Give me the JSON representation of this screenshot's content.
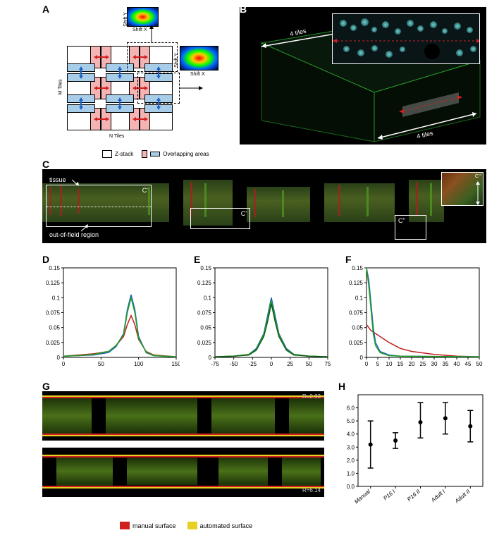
{
  "labels": {
    "A": "A",
    "B": "B",
    "C": "C",
    "D": "D",
    "E": "E",
    "F": "F",
    "G": "G",
    "H": "H"
  },
  "panelA": {
    "m_tiles": "M Tiles",
    "n_tiles": "N Tiles",
    "shift_x": "Shift X",
    "shift_y": "Shift Y",
    "legend_zstack": "Z-stack",
    "legend_overlap": "Overlapping areas",
    "tile_border": "#000000",
    "overlap_h_color": "#f4b4b4",
    "overlap_v_color": "#a8cde8",
    "arrow_h_color": "#d02020",
    "arrow_v_color": "#2060c0"
  },
  "panelB": {
    "label_4tiles_top": "4 tiles",
    "label_4tiles_bottom": "4 tiles",
    "cell_color": "#6fd4d4",
    "box_color": "#2fae2f",
    "dash_color": "#d02020"
  },
  "panelC": {
    "label_tissue": "tissue",
    "label_outfield": "out-of-field region",
    "label_outfield_side": "out of\nfield",
    "label_tissue_side": "tissue",
    "c1": "C'",
    "c2": "C'",
    "c3": "C''",
    "c3_inset": "C'''"
  },
  "chartD": {
    "type": "line",
    "xlim": [
      0,
      150
    ],
    "ylim": [
      0,
      0.15
    ],
    "xticks": [
      0,
      50,
      100,
      150
    ],
    "yticks": [
      0,
      0.025,
      0.05,
      0.075,
      0.1,
      0.125,
      0.15
    ],
    "series": [
      {
        "color": "#c02020",
        "x": [
          0,
          20,
          40,
          60,
          70,
          80,
          85,
          90,
          95,
          100,
          110,
          120,
          150
        ],
        "y": [
          0.002,
          0.004,
          0.006,
          0.01,
          0.02,
          0.035,
          0.055,
          0.07,
          0.055,
          0.03,
          0.01,
          0.004,
          0.001
        ]
      },
      {
        "color": "#2060c0",
        "x": [
          0,
          20,
          40,
          60,
          70,
          80,
          85,
          90,
          95,
          100,
          110,
          120,
          150
        ],
        "y": [
          0.002,
          0.003,
          0.004,
          0.008,
          0.018,
          0.04,
          0.08,
          0.105,
          0.08,
          0.035,
          0.008,
          0.003,
          0.001
        ]
      },
      {
        "color": "#20a020",
        "x": [
          0,
          20,
          40,
          60,
          70,
          80,
          85,
          90,
          95,
          100,
          110,
          120,
          150
        ],
        "y": [
          0.002,
          0.003,
          0.005,
          0.01,
          0.02,
          0.038,
          0.075,
          0.1,
          0.075,
          0.032,
          0.009,
          0.003,
          0.001
        ]
      }
    ],
    "background": "#ffffff",
    "axis_color": "#000000"
  },
  "chartE": {
    "type": "line",
    "xlim": [
      -75,
      75
    ],
    "ylim": [
      0,
      0.15
    ],
    "xticks": [
      -75,
      -50,
      -25,
      0,
      25,
      50,
      75
    ],
    "yticks": [
      0,
      0.025,
      0.05,
      0.075,
      0.1,
      0.125,
      0.15
    ],
    "series": [
      {
        "color": "#2060c0",
        "x": [
          -75,
          -50,
          -30,
          -20,
          -10,
          -5,
          0,
          5,
          10,
          20,
          30,
          50,
          75
        ],
        "y": [
          0.001,
          0.002,
          0.005,
          0.015,
          0.04,
          0.07,
          0.1,
          0.07,
          0.04,
          0.015,
          0.005,
          0.002,
          0.001
        ]
      },
      {
        "color": "#20a020",
        "x": [
          -75,
          -50,
          -30,
          -20,
          -10,
          -5,
          0,
          5,
          10,
          20,
          30,
          50,
          75
        ],
        "y": [
          0.001,
          0.002,
          0.005,
          0.013,
          0.038,
          0.065,
          0.095,
          0.065,
          0.038,
          0.013,
          0.005,
          0.002,
          0.001
        ]
      },
      {
        "color": "#106010",
        "x": [
          -75,
          -50,
          -30,
          -20,
          -10,
          -5,
          0,
          5,
          10,
          20,
          30,
          50,
          75
        ],
        "y": [
          0.001,
          0.002,
          0.004,
          0.012,
          0.035,
          0.06,
          0.09,
          0.06,
          0.035,
          0.012,
          0.004,
          0.002,
          0.001
        ]
      }
    ],
    "background": "#ffffff",
    "axis_color": "#000000"
  },
  "chartF": {
    "type": "line",
    "xlim": [
      0,
      50
    ],
    "ylim": [
      0,
      0.15
    ],
    "xticks": [
      0,
      5,
      10,
      15,
      20,
      25,
      30,
      35,
      40,
      45,
      50
    ],
    "yticks": [
      0,
      0.025,
      0.05,
      0.075,
      0.1,
      0.125,
      0.15
    ],
    "series": [
      {
        "color": "#c02020",
        "x": [
          0,
          1,
          2,
          4,
          6,
          10,
          15,
          20,
          30,
          40,
          50
        ],
        "y": [
          0.055,
          0.05,
          0.045,
          0.04,
          0.035,
          0.025,
          0.015,
          0.01,
          0.005,
          0.002,
          0.001
        ]
      },
      {
        "color": "#2060c0",
        "x": [
          0,
          1,
          2,
          3,
          4,
          6,
          10,
          15,
          50
        ],
        "y": [
          0.15,
          0.13,
          0.09,
          0.05,
          0.025,
          0.01,
          0.004,
          0.002,
          0.001
        ]
      },
      {
        "color": "#20a020",
        "x": [
          0,
          1,
          2,
          3,
          4,
          6,
          10,
          15,
          50
        ],
        "y": [
          0.15,
          0.12,
          0.08,
          0.04,
          0.02,
          0.008,
          0.003,
          0.002,
          0.001
        ]
      }
    ],
    "background": "#ffffff",
    "axis_color": "#000000"
  },
  "panelG": {
    "r1": "R=2.93",
    "r2": "R=6.14",
    "legend_manual": "manual surface",
    "legend_auto": "automated surface",
    "manual_color": "#d02020",
    "auto_color": "#e8d020"
  },
  "panelH": {
    "type": "errorbar",
    "ylim": [
      0,
      7
    ],
    "yticks": [
      "0.0",
      "1.0",
      "2.0",
      "3.0",
      "4.0",
      "5.0",
      "6.0"
    ],
    "categories": [
      "Manual",
      "P16 I",
      "P16 II",
      "Adult I",
      "Adult II"
    ],
    "means": [
      3.2,
      3.5,
      4.9,
      5.2,
      4.6
    ],
    "err_low": [
      1.8,
      0.6,
      1.2,
      1.2,
      1.2
    ],
    "err_high": [
      1.8,
      0.6,
      1.5,
      1.2,
      1.2
    ],
    "marker_color": "#000000",
    "axis_color": "#000000",
    "fontsize": 8
  }
}
